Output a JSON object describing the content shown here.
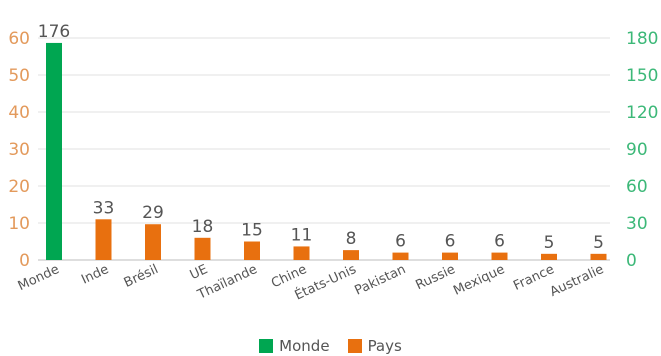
{
  "chart_data": {
    "type": "bar",
    "categories": [
      "Monde",
      "Inde",
      "Brésil",
      "UE",
      "Thaïlande",
      "Chine",
      "États-Unis",
      "Pakistan",
      "Russie",
      "Mexique",
      "France",
      "Australie"
    ],
    "series": [
      {
        "name": "Monde",
        "values": [
          176,
          null,
          null,
          null,
          null,
          null,
          null,
          null,
          null,
          null,
          null,
          null
        ],
        "color": "#00a651"
      },
      {
        "name": "Pays",
        "values": [
          null,
          33,
          29,
          18,
          15,
          11,
          8,
          6,
          6,
          6,
          5,
          5
        ],
        "color": "#e8700f"
      }
    ],
    "data_labels": [
      "176",
      "33",
      "29",
      "18",
      "15",
      "11",
      "8",
      "6",
      "6",
      "6",
      "5",
      "5"
    ],
    "y_left": {
      "ticks": [
        0,
        10,
        20,
        30,
        40,
        50,
        60
      ],
      "ylim": [
        0,
        60
      ],
      "color": "#e39a5c"
    },
    "y_right": {
      "ticks": [
        0,
        30,
        60,
        90,
        120,
        150,
        180
      ],
      "ylim": [
        0,
        180
      ],
      "color": "#3cb878"
    },
    "grid": true,
    "legend": {
      "position": "bottom"
    }
  }
}
